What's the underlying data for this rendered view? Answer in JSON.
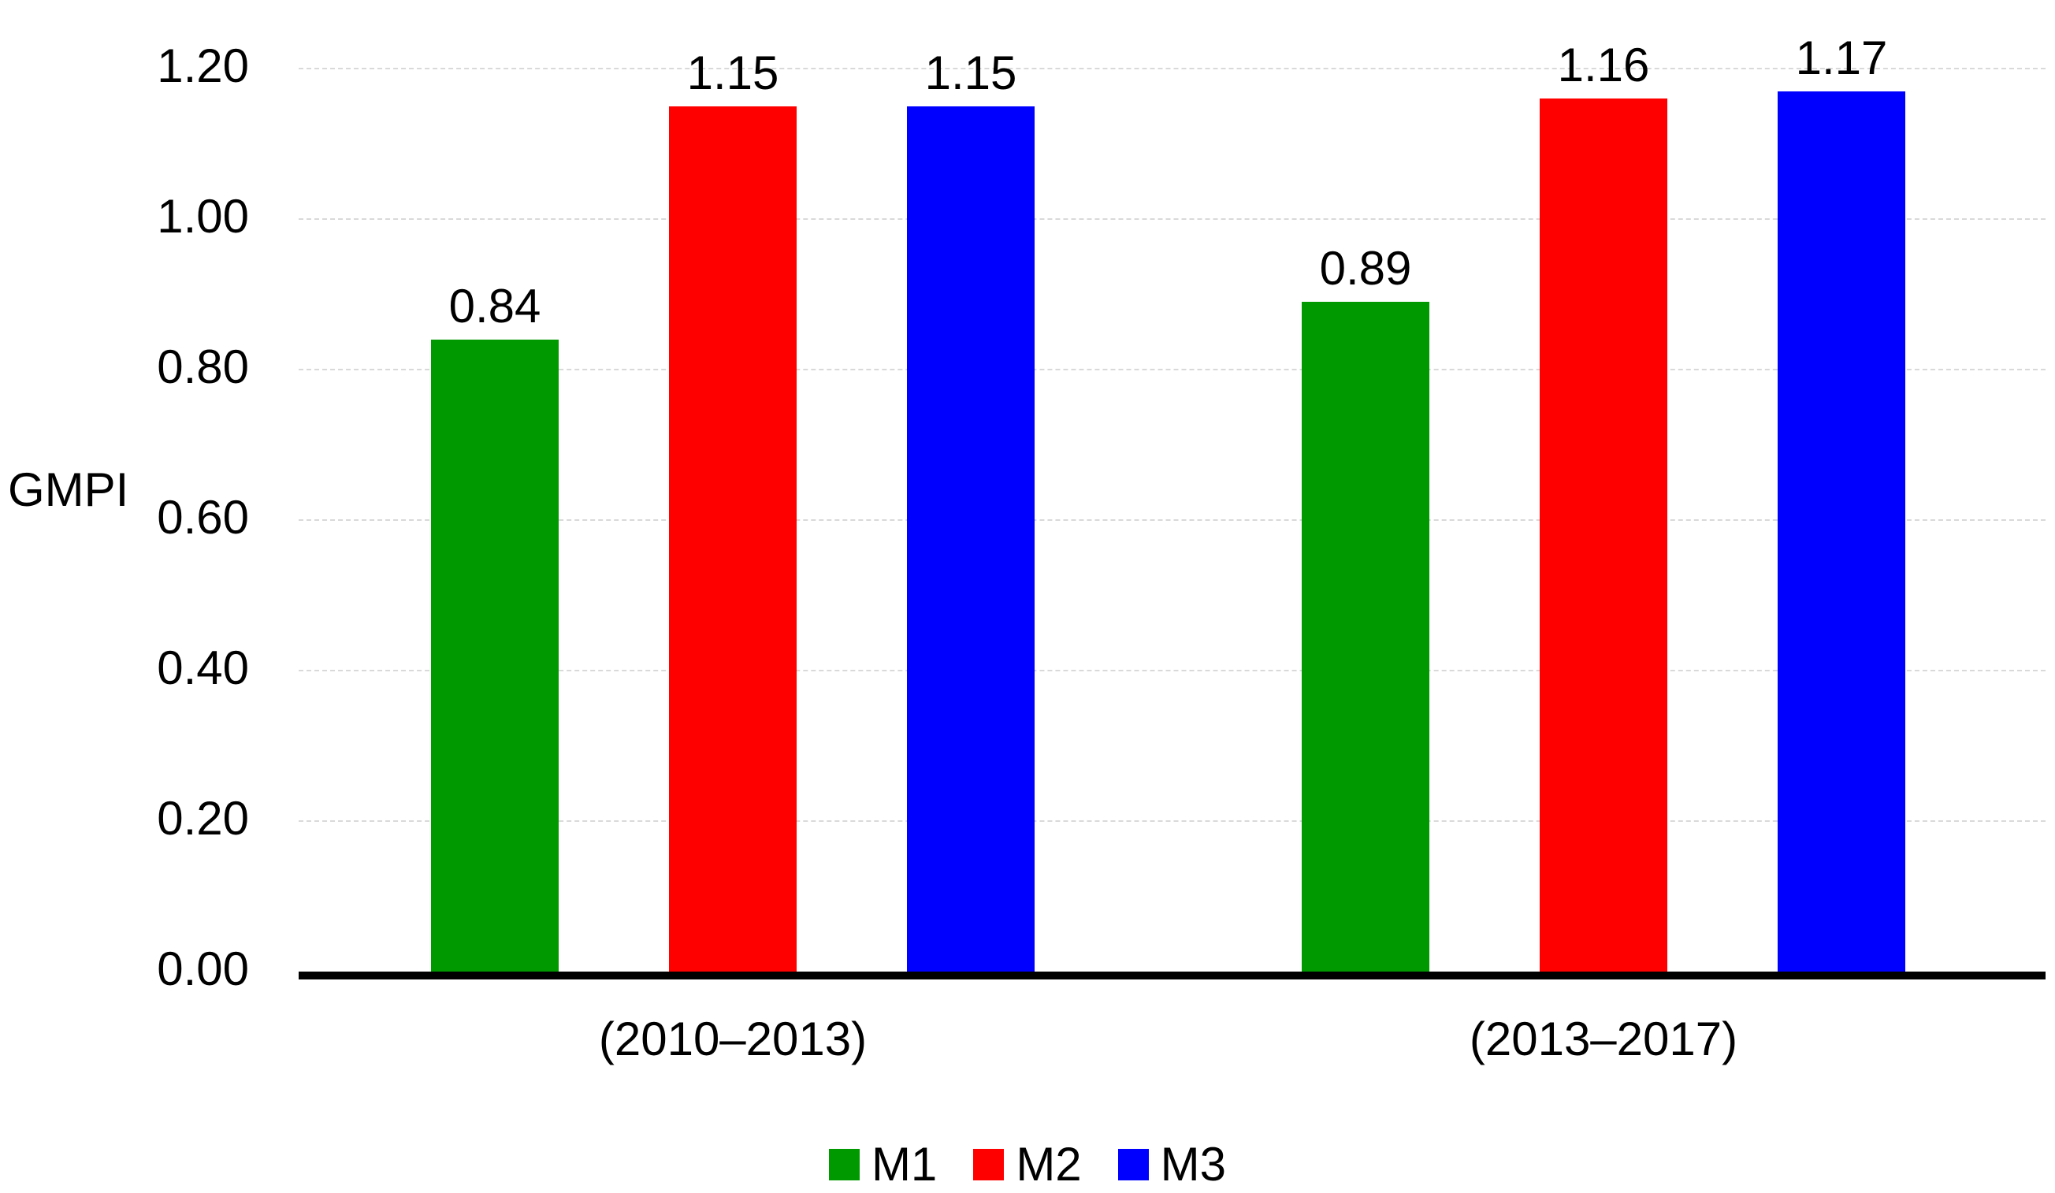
{
  "chart_data": {
    "type": "bar",
    "title": "",
    "ylabel": "GMPI",
    "xlabel": "",
    "categories": [
      "(2010–2013)",
      "(2013–2017)"
    ],
    "series": [
      {
        "name": "M1",
        "color": "#009900",
        "values": [
          0.84,
          0.89
        ]
      },
      {
        "name": "M2",
        "color": "#FF0000",
        "values": [
          1.15,
          1.16
        ]
      },
      {
        "name": "M3",
        "color": "#0000FF",
        "values": [
          1.15,
          1.17
        ]
      }
    ],
    "value_labels": [
      [
        "0.84",
        "1.15",
        "1.15"
      ],
      [
        "0.89",
        "1.16",
        "1.17"
      ]
    ],
    "yticks": [
      "0.00",
      "0.20",
      "0.40",
      "0.60",
      "0.80",
      "1.00",
      "1.20"
    ],
    "ylim": [
      0,
      1.2
    ],
    "grid": "horizontal-dashed",
    "gridline_color": "#D9D9D9",
    "axis_color": "#000000",
    "text_color": "#000000",
    "legend_position": "bottom",
    "legend": [
      "M1",
      "M2",
      "M3"
    ]
  }
}
